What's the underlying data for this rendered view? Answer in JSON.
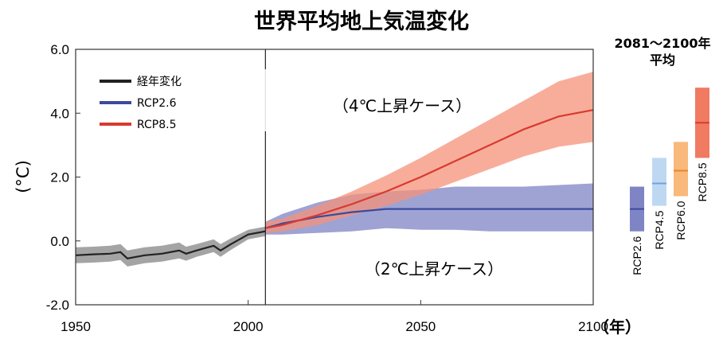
{
  "chart_data": {
    "type": "line",
    "title": "世界平均地上気温変化",
    "xlabel": "（年）",
    "ylabel": "(°C)",
    "xlim": [
      1950,
      2100
    ],
    "ylim": [
      -2.0,
      6.0
    ],
    "x_ticks": [
      "1950",
      "2000",
      "2050",
      "2100"
    ],
    "y_ticks": [
      "-2.0",
      "0.0",
      "2.0",
      "4.0",
      "6.0"
    ],
    "grid": false,
    "legend_position": "top-left",
    "divider_year": 2005,
    "series": [
      {
        "name": "経年変化",
        "color": "#222222",
        "band_color": "#9a9a9a",
        "x": [
          1950,
          1955,
          1960,
          1963,
          1965,
          1970,
          1975,
          1980,
          1982,
          1985,
          1990,
          1992,
          1995,
          2000,
          2005
        ],
        "y": [
          -0.45,
          -0.42,
          -0.4,
          -0.35,
          -0.55,
          -0.45,
          -0.4,
          -0.3,
          -0.4,
          -0.3,
          -0.15,
          -0.3,
          -0.1,
          0.2,
          0.3
        ],
        "lower": [
          -0.7,
          -0.68,
          -0.65,
          -0.6,
          -0.8,
          -0.7,
          -0.65,
          -0.55,
          -0.62,
          -0.5,
          -0.35,
          -0.5,
          -0.28,
          0.05,
          0.15
        ],
        "upper": [
          -0.2,
          -0.18,
          -0.15,
          -0.1,
          -0.3,
          -0.2,
          -0.15,
          -0.05,
          -0.18,
          -0.1,
          0.05,
          -0.1,
          0.08,
          0.35,
          0.45
        ]
      },
      {
        "name": "RCP2.6",
        "color": "#3b4a9c",
        "band_color": "#7f84c4",
        "x": [
          2005,
          2010,
          2020,
          2030,
          2040,
          2050,
          2060,
          2070,
          2080,
          2090,
          2100
        ],
        "y": [
          0.4,
          0.55,
          0.75,
          0.9,
          1.0,
          1.0,
          1.0,
          1.0,
          1.0,
          1.0,
          1.0
        ],
        "lower": [
          0.2,
          0.2,
          0.25,
          0.3,
          0.4,
          0.35,
          0.35,
          0.3,
          0.3,
          0.3,
          0.3
        ],
        "upper": [
          0.6,
          0.85,
          1.2,
          1.45,
          1.55,
          1.6,
          1.7,
          1.7,
          1.7,
          1.75,
          1.8
        ]
      },
      {
        "name": "RCP8.5",
        "color": "#d93a2f",
        "band_color": "#f5917a",
        "x": [
          2005,
          2010,
          2020,
          2030,
          2040,
          2050,
          2060,
          2070,
          2080,
          2090,
          2100
        ],
        "y": [
          0.4,
          0.5,
          0.8,
          1.15,
          1.55,
          2.0,
          2.5,
          3.0,
          3.5,
          3.9,
          4.1
        ],
        "lower": [
          0.25,
          0.3,
          0.5,
          0.8,
          1.1,
          1.45,
          1.85,
          2.25,
          2.65,
          2.95,
          3.1
        ],
        "upper": [
          0.6,
          0.7,
          1.1,
          1.55,
          2.05,
          2.6,
          3.2,
          3.8,
          4.4,
          5.0,
          5.3
        ]
      }
    ],
    "annotations": [
      "（4℃上昇ケース）",
      "（2℃上昇ケース）"
    ],
    "side_panel": {
      "title_line1": "2081～2100年",
      "title_line2": "平均",
      "bars": [
        {
          "label": "RCP2.6",
          "low": 0.3,
          "mid": 1.0,
          "high": 1.7,
          "color": "#7f84c4",
          "line_color": "#3b4a9c"
        },
        {
          "label": "RCP4.5",
          "low": 1.1,
          "mid": 1.8,
          "high": 2.6,
          "color": "#bfd8f2",
          "line_color": "#6fa3db"
        },
        {
          "label": "RCP6.0",
          "low": 1.4,
          "mid": 2.2,
          "high": 3.1,
          "color": "#f8b97a",
          "line_color": "#e8862f"
        },
        {
          "label": "RCP8.5",
          "low": 2.6,
          "mid": 3.7,
          "high": 4.8,
          "color": "#f07a62",
          "line_color": "#d93a2f"
        }
      ]
    }
  }
}
